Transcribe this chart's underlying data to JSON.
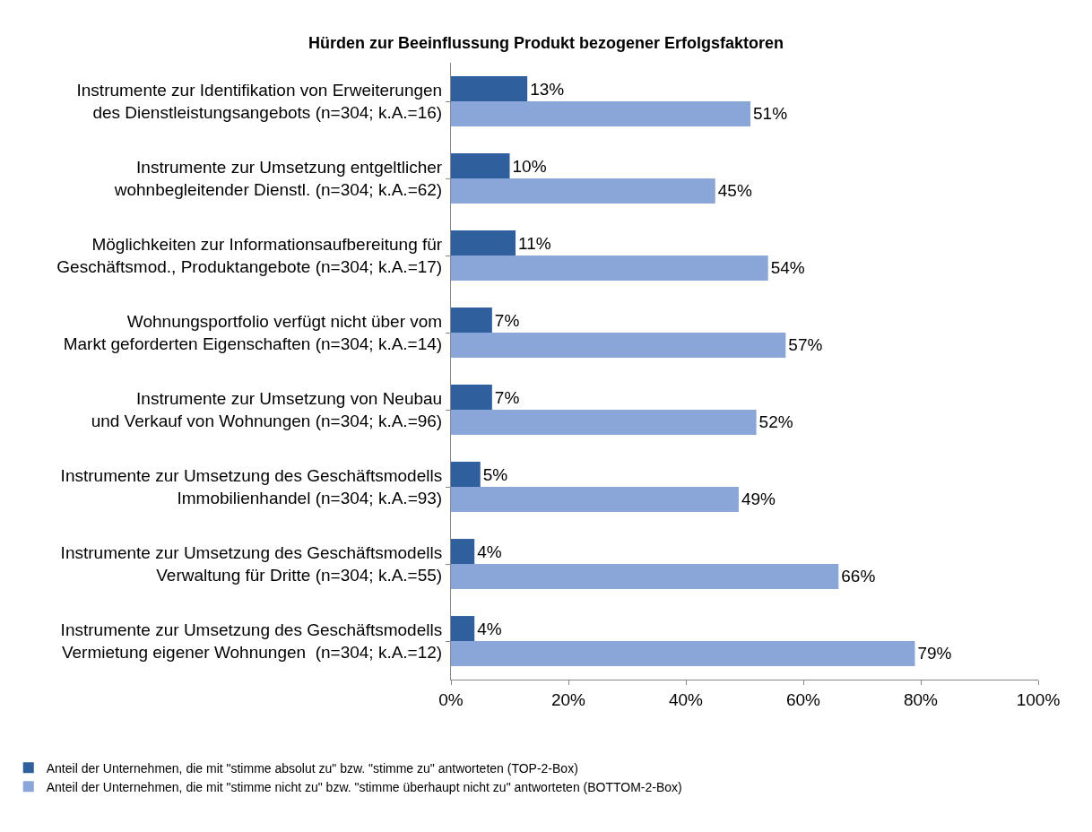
{
  "chart_data": {
    "type": "bar",
    "orientation": "horizontal",
    "title": "Hürden zur Beeinflussung Produkt bezogener Erfolgsfaktoren",
    "categories": [
      "Instrumente zur Identifikation von Erweiterungen\ndes Dienstleistungsangebots (n=304; k.A.=16)",
      "Instrumente zur Umsetzung entgeltlicher\nwohnbegleitender Dienstl. (n=304; k.A.=62)",
      "Möglichkeiten zur Informationsaufbereitung für\nGeschäftsmod., Produktangebote (n=304; k.A.=17)",
      "Wohnungsportfolio verfügt nicht über vom\nMarkt geforderten Eigenschaften (n=304; k.A.=14)",
      "Instrumente zur Umsetzung von Neubau\nund Verkauf von Wohnungen (n=304; k.A.=96)",
      "Instrumente zur Umsetzung des Geschäftsmodells\nImmobilienhandel (n=304; k.A.=93)",
      "Instrumente zur Umsetzung des Geschäftsmodells\nVerwaltung für Dritte (n=304; k.A.=55)",
      "Instrumente zur Umsetzung des Geschäftsmodells\nVermietung eigener Wohnungen  (n=304; k.A.=12)"
    ],
    "series": [
      {
        "name": "Anteil der Unternehmen, die mit \"stimme absolut zu\" bzw. \"stimme zu\" antworteten (TOP-2-Box)",
        "color": "#2f5f9c",
        "values": [
          13,
          10,
          11,
          7,
          7,
          5,
          4,
          4
        ],
        "value_labels": [
          "13%",
          "10%",
          "11%",
          "7%",
          "7%",
          "5%",
          "4%",
          "4%"
        ]
      },
      {
        "name": "Anteil der Unternehmen, die mit \"stimme nicht zu\" bzw. \"stimme überhaupt nicht zu\" antworteten (BOTTOM-2-Box)",
        "color": "#8aa5d8",
        "values": [
          51,
          45,
          54,
          57,
          52,
          49,
          66,
          79
        ],
        "value_labels": [
          "51%",
          "45%",
          "54%",
          "57%",
          "52%",
          "49%",
          "66%",
          "79%"
        ]
      }
    ],
    "xlim": [
      0,
      100
    ],
    "xticks": [
      {
        "value": 0,
        "label": "0%"
      },
      {
        "value": 20,
        "label": "20%"
      },
      {
        "value": 40,
        "label": "40%"
      },
      {
        "value": 60,
        "label": "60%"
      },
      {
        "value": 80,
        "label": "80%"
      },
      {
        "value": 100,
        "label": "100%"
      }
    ],
    "legend": "bottom"
  }
}
